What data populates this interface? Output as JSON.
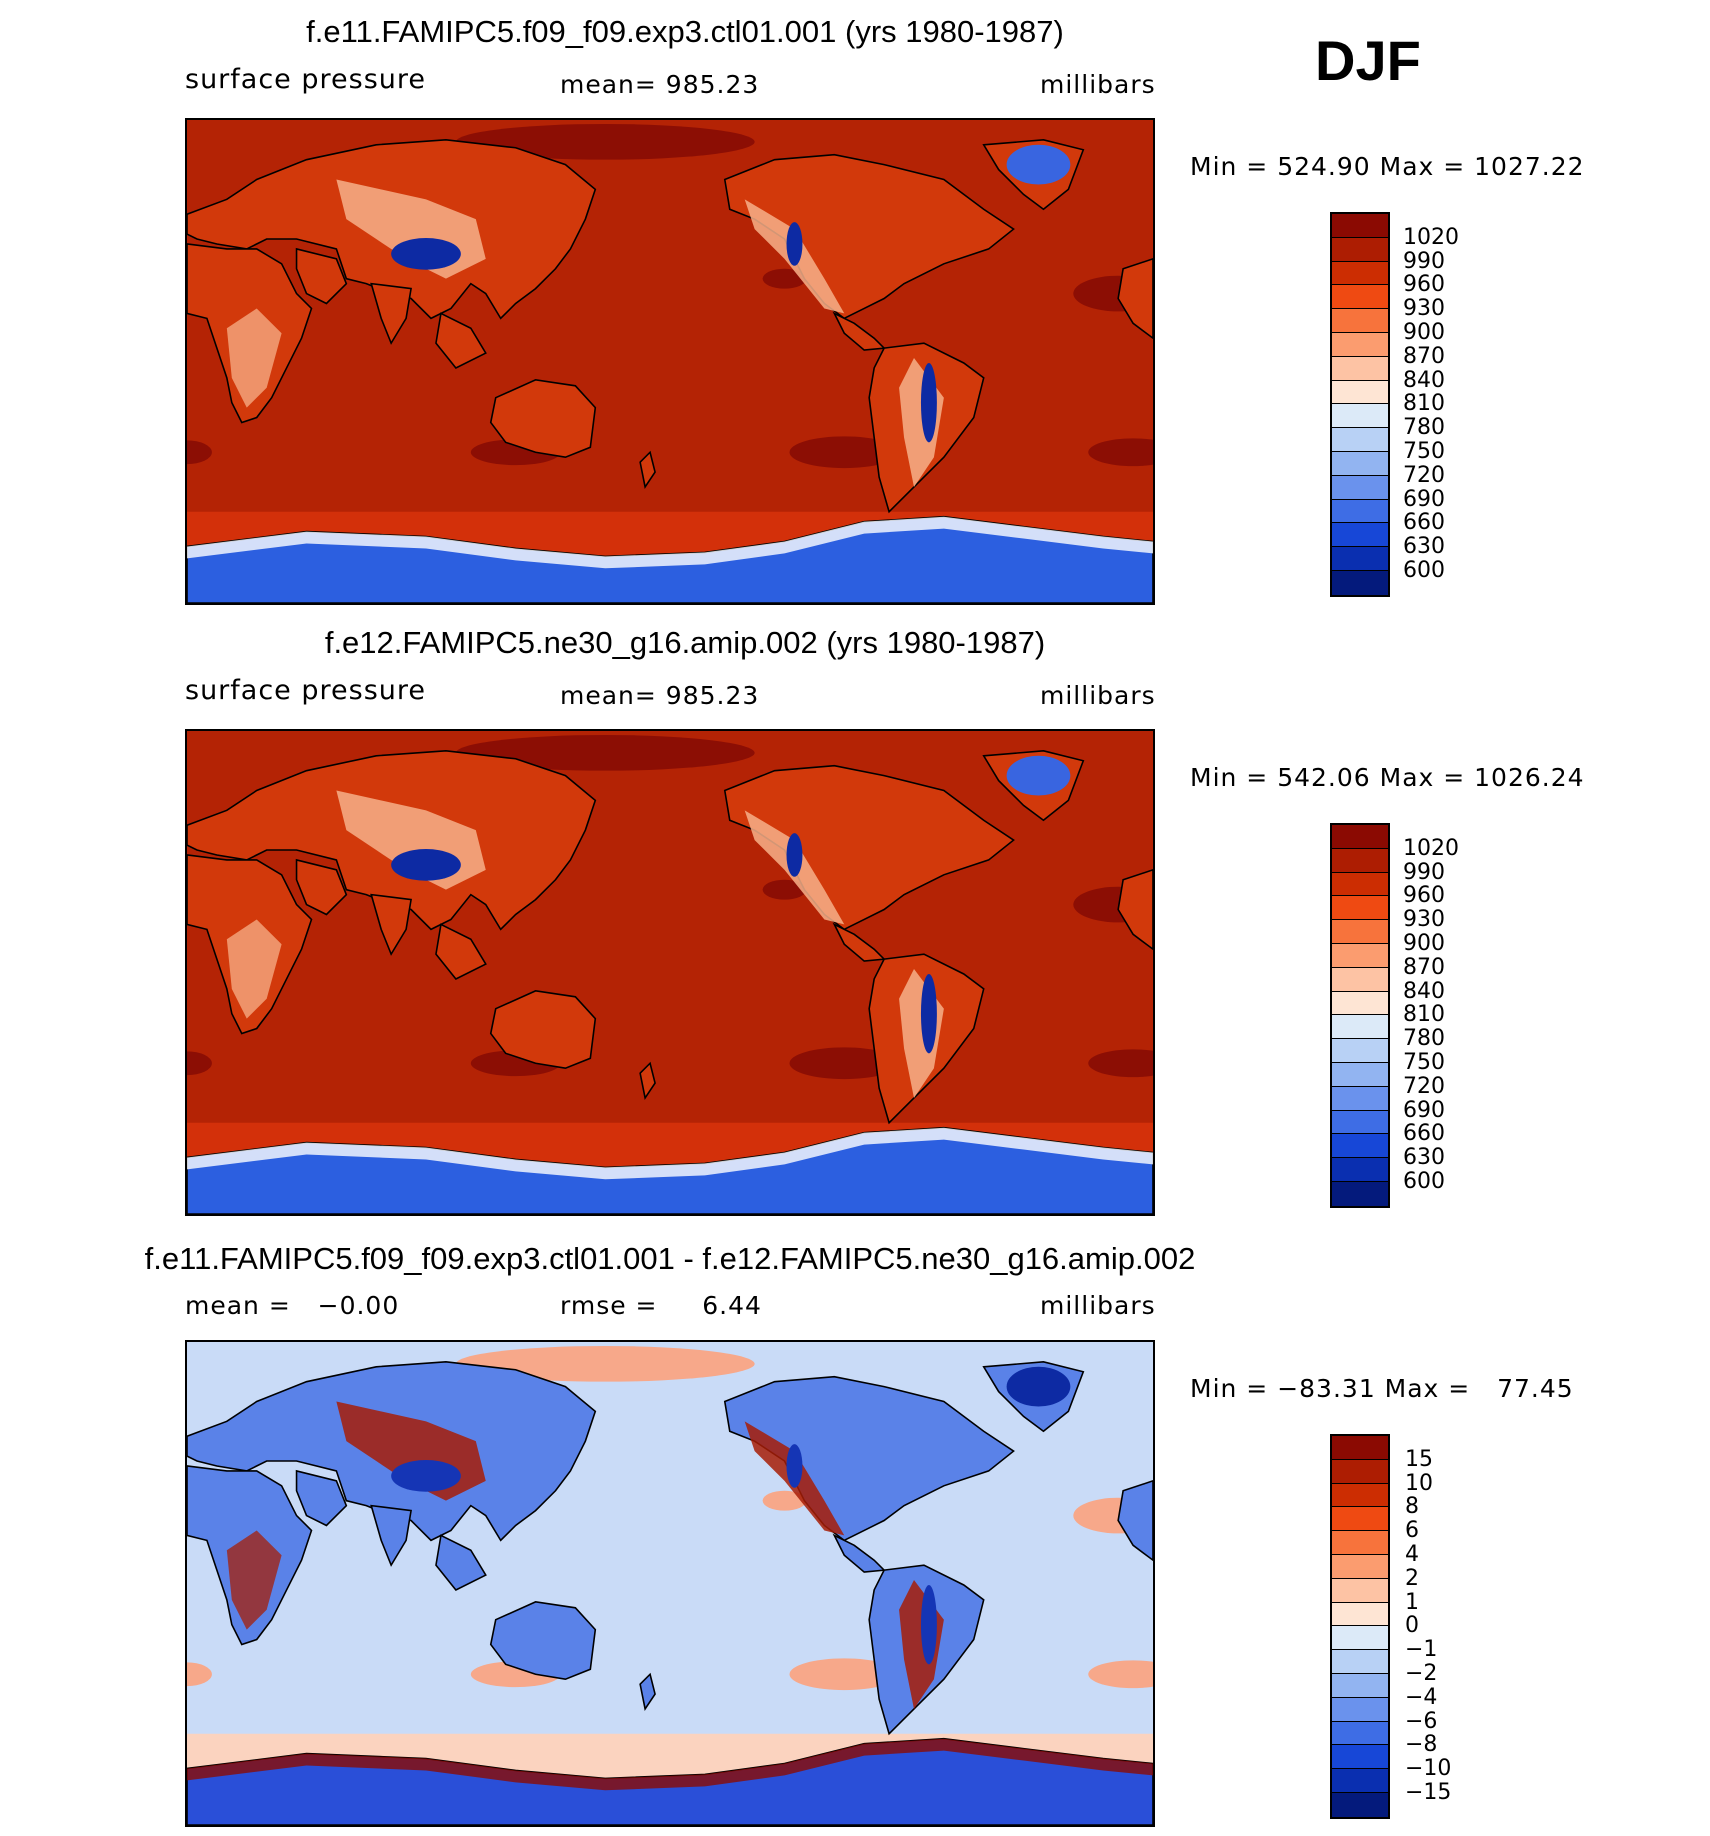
{
  "season": "DJF",
  "panels": [
    {
      "title": "f.e11.FAMIPC5.f09_f09.exp3.ctl01.001 (yrs 1980-1987)",
      "left_label": "surface pressure",
      "center_label": "mean= 985.23",
      "right_label": "millibars",
      "minmax": "Min = 524.90 Max = 1027.22",
      "colorbar": {
        "labels": [
          "1020",
          "990",
          "960",
          "930",
          "900",
          "870",
          "840",
          "810",
          "780",
          "750",
          "720",
          "690",
          "660",
          "630",
          "600"
        ],
        "colors": [
          "#8b0a02",
          "#ad1d02",
          "#cc2d02",
          "#ef4a12",
          "#f7733c",
          "#fb9c6f",
          "#fdc3a4",
          "#fee5d4",
          "#dceaf8",
          "#b8d1f5",
          "#92b4f1",
          "#6a92ed",
          "#3e6de5",
          "#1747d7",
          "#0a2fb0",
          "#041a7c"
        ]
      },
      "map_colors": {
        "ocean": "#b42305",
        "land": "#d2390b",
        "highlands": "#f7b089",
        "plateau": "#0d2aa3",
        "subtropical_high": "#8c0e04",
        "southern_belt": "#d3300a",
        "antarctica": "#2c5fe0",
        "antarctica_edge": "#ffffff",
        "greenland": "#3965e0"
      }
    },
    {
      "title": "f.e12.FAMIPC5.ne30_g16.amip.002 (yrs 1980-1987)",
      "left_label": "surface pressure",
      "center_label": "mean= 985.23",
      "right_label": "millibars",
      "minmax": "Min = 542.06 Max = 1026.24",
      "colorbar": {
        "labels": [
          "1020",
          "990",
          "960",
          "930",
          "900",
          "870",
          "840",
          "810",
          "780",
          "750",
          "720",
          "690",
          "660",
          "630",
          "600"
        ],
        "colors": [
          "#8b0a02",
          "#ad1d02",
          "#cc2d02",
          "#ef4a12",
          "#f7733c",
          "#fb9c6f",
          "#fdc3a4",
          "#fee5d4",
          "#dceaf8",
          "#b8d1f5",
          "#92b4f1",
          "#6a92ed",
          "#3e6de5",
          "#1747d7",
          "#0a2fb0",
          "#041a7c"
        ]
      },
      "map_colors": {
        "ocean": "#b42305",
        "land": "#d2390b",
        "highlands": "#f7b089",
        "plateau": "#0d2aa3",
        "subtropical_high": "#8c0e04",
        "southern_belt": "#d3300a",
        "antarctica": "#2c5fe0",
        "antarctica_edge": "#ffffff",
        "greenland": "#3965e0"
      }
    },
    {
      "title": "f.e11.FAMIPC5.f09_f09.exp3.ctl01.001 - f.e12.FAMIPC5.ne30_g16.amip.002",
      "left_label": "mean =   −0.00",
      "center_label": "rmse =     6.44",
      "right_label": "millibars",
      "minmax": "Min = −83.31 Max =   77.45",
      "colorbar": {
        "labels": [
          "15",
          "10",
          "8",
          "6",
          "4",
          "2",
          "1",
          "0",
          "−1",
          "−2",
          "−4",
          "−6",
          "−8",
          "−10",
          "−15"
        ],
        "colors": [
          "#8b0a02",
          "#ad1d02",
          "#cc2d02",
          "#ef4a12",
          "#f7733c",
          "#fb9c6f",
          "#fdc3a4",
          "#fee5d4",
          "#dceaf8",
          "#b8d1f5",
          "#92b4f1",
          "#6a92ed",
          "#3e6de5",
          "#1747d7",
          "#0a2fb0",
          "#041a7c"
        ]
      },
      "map_colors": {
        "ocean": "#c9dbf7",
        "land": "#5a82e8",
        "highlands": "#a71d07",
        "plateau": "#1535b5",
        "subtropical_high": "#f7a88a",
        "southern_belt": "#fbd3bf",
        "antarctica": "#2a4fd8",
        "antarctica_edge": "#8b0a02",
        "greenland": "#0d2aa3"
      }
    }
  ]
}
